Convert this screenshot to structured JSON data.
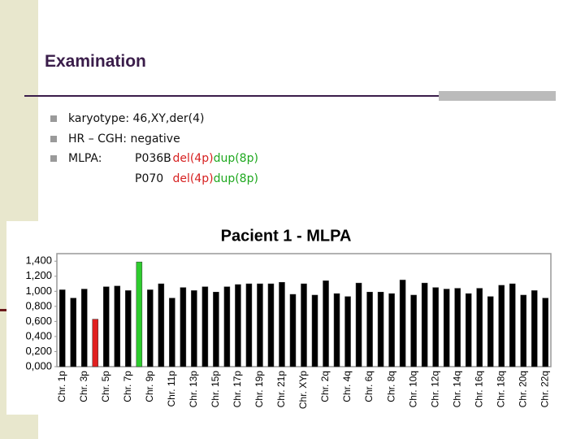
{
  "slide": {
    "title": "Examination",
    "bullets": [
      "karyotype: 46,XY,der(4)",
      "HR – CGH: negative"
    ],
    "mlpa": {
      "label": "MLPA:",
      "rows": [
        [
          "P036B",
          "del(4p)",
          "dup(8p)"
        ],
        [
          "P070",
          "del(4p)",
          "dup(8p)"
        ]
      ]
    }
  },
  "chart_data": {
    "type": "bar",
    "title": "Pacient 1 - MLPA",
    "categories": [
      "Chr. 1p",
      null,
      "Chr. 3p",
      null,
      "Chr. 5p",
      null,
      "Chr. 7p",
      null,
      "Chr. 9p",
      null,
      "Chr. 11p",
      null,
      "Chr. 13p",
      null,
      "Chr. 15p",
      null,
      "Chr. 17p",
      null,
      "Chr. 19p",
      null,
      "Chr. 21p",
      null,
      "Chr. XYp",
      null,
      "Chr. 2q",
      null,
      "Chr. 4q",
      null,
      "Chr. 6q",
      null,
      "Chr. 8q",
      null,
      "Chr. 10q",
      null,
      "Chr. 12q",
      null,
      "Chr. 14q",
      null,
      "Chr. 16q",
      null,
      "Chr. 18q",
      null,
      "Chr. 20q",
      null,
      "Chr. 22q"
    ],
    "values": [
      1.02,
      0.91,
      1.03,
      0.63,
      1.06,
      1.07,
      1.01,
      1.39,
      1.02,
      1.1,
      0.91,
      1.05,
      1.01,
      1.06,
      0.99,
      1.06,
      1.09,
      1.1,
      1.1,
      1.1,
      1.12,
      0.96,
      1.1,
      0.95,
      1.14,
      0.97,
      0.93,
      1.11,
      0.99,
      0.99,
      0.97,
      1.15,
      0.95,
      1.11,
      1.05,
      1.03,
      1.04,
      0.97,
      1.04,
      0.93,
      1.08,
      1.1,
      0.95,
      1.01,
      0.91
    ],
    "colors": [
      "#000000",
      "#000000",
      "#000000",
      "#e02020",
      "#000000",
      "#000000",
      "#000000",
      "#2ecc2e",
      "#000000",
      "#000000",
      "#000000",
      "#000000",
      "#000000",
      "#000000",
      "#000000",
      "#000000",
      "#000000",
      "#000000",
      "#000000",
      "#000000",
      "#000000",
      "#000000",
      "#000000",
      "#000000",
      "#000000",
      "#000000",
      "#000000",
      "#000000",
      "#000000",
      "#000000",
      "#000000",
      "#000000",
      "#000000",
      "#000000",
      "#000000",
      "#000000",
      "#000000",
      "#000000",
      "#000000",
      "#000000",
      "#000000",
      "#000000",
      "#000000",
      "#000000",
      "#000000"
    ],
    "ylim": [
      0,
      1.5
    ],
    "yticks": [
      {
        "value": 0,
        "label": "0,000"
      },
      {
        "value": 0.2,
        "label": "0,200"
      },
      {
        "value": 0.4,
        "label": "0,400"
      },
      {
        "value": 0.6,
        "label": "0,600"
      },
      {
        "value": 0.8,
        "label": "0,800"
      },
      {
        "value": 1.0,
        "label": "1,000"
      },
      {
        "value": 1.2,
        "label": "1,200"
      },
      {
        "value": 1.4,
        "label": "1,400"
      }
    ],
    "grid": false
  }
}
